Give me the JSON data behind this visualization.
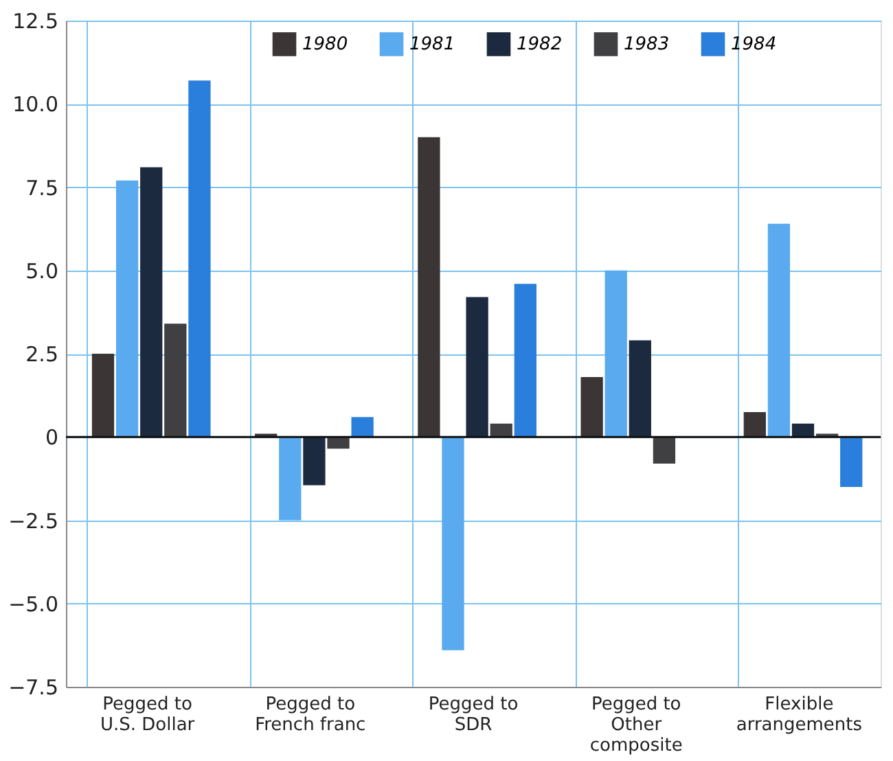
{
  "chart_data": {
    "type": "bar",
    "categories": [
      "Pegged to U.S. Dollar",
      "Pegged to French franc",
      "Pegged to SDR",
      "Pegged to Other composite",
      "Flexible arrangements"
    ],
    "series": [
      {
        "name": "1980",
        "color": "#3b3535",
        "values": [
          2.5,
          0.1,
          9.0,
          1.8,
          0.75
        ]
      },
      {
        "name": "1981",
        "color": "#5aaaf0",
        "values": [
          7.7,
          -2.5,
          -6.4,
          5.0,
          6.4
        ]
      },
      {
        "name": "1982",
        "color": "#1c2a40",
        "values": [
          8.1,
          -1.45,
          4.2,
          2.9,
          0.4
        ]
      },
      {
        "name": "1983",
        "color": "#404042",
        "values": [
          3.4,
          -0.35,
          0.4,
          -0.8,
          0.1
        ]
      },
      {
        "name": "1984",
        "color": "#2a7fdc",
        "values": [
          10.7,
          0.6,
          4.6,
          0,
          -1.5
        ]
      }
    ],
    "ylim": [
      -7.5,
      12.5
    ],
    "yticks": [
      {
        "value": -7.5,
        "label": "−7.5"
      },
      {
        "value": -5,
        "label": "−5.0"
      },
      {
        "value": -2.5,
        "label": "−2.5"
      },
      {
        "value": 0,
        "label": "0"
      },
      {
        "value": 2.5,
        "label": "2.5"
      },
      {
        "value": 5,
        "label": "5.0"
      },
      {
        "value": 7.5,
        "label": "7.5"
      },
      {
        "value": 10,
        "label": "10.0"
      },
      {
        "value": 12.5,
        "label": "12.5"
      }
    ],
    "grid": true,
    "legend": "top"
  }
}
